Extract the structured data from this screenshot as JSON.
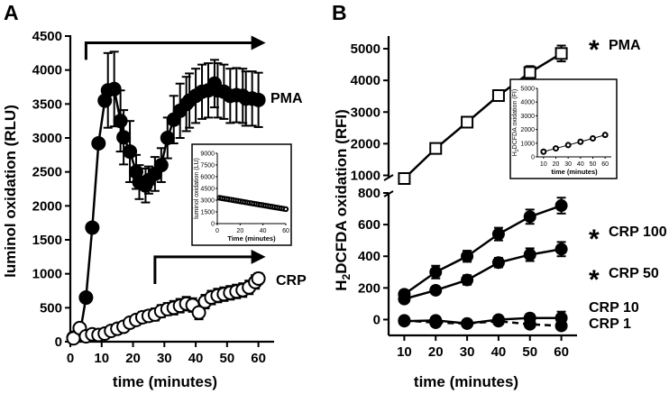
{
  "chart_data": [
    {
      "panel": "A",
      "type": "line",
      "xlabel": "time (minutes)",
      "ylabel": "luminol oxidation (RLU)",
      "xlim": [
        0,
        65
      ],
      "ylim": [
        0,
        4500
      ],
      "xticks": [
        0,
        10,
        20,
        30,
        40,
        50,
        60
      ],
      "yticks": [
        0,
        500,
        1000,
        1500,
        2000,
        2500,
        3000,
        3500,
        4000,
        4500
      ],
      "series": [
        {
          "name": "PMA",
          "marker": "filled-circle",
          "x": [
            1,
            3,
            5,
            7,
            9,
            11,
            12,
            14,
            16,
            17,
            19,
            21,
            22,
            24,
            25,
            27,
            29,
            31,
            33,
            35,
            37,
            38,
            40,
            42,
            44,
            46,
            47,
            49,
            51,
            53,
            55,
            56,
            58,
            60
          ],
          "values": [
            60,
            100,
            650,
            1680,
            2920,
            3550,
            3700,
            3720,
            3250,
            3010,
            2800,
            2500,
            2350,
            2300,
            2380,
            2470,
            2600,
            3000,
            3270,
            3400,
            3500,
            3550,
            3620,
            3680,
            3700,
            3800,
            3700,
            3680,
            3620,
            3630,
            3620,
            3580,
            3580,
            3560
          ],
          "errors": [
            0,
            0,
            0,
            0,
            0,
            0,
            550,
            550,
            450,
            400,
            450,
            250,
            250,
            250,
            200,
            250,
            250,
            300,
            350,
            400,
            400,
            400,
            400,
            400,
            400,
            350,
            400,
            400,
            400,
            400,
            400,
            400,
            400,
            400
          ]
        },
        {
          "name": "CRP",
          "marker": "open-circle",
          "x": [
            1,
            3,
            5,
            7,
            9,
            11,
            13,
            15,
            17,
            19,
            21,
            23,
            25,
            27,
            29,
            31,
            33,
            35,
            37,
            39,
            41,
            43,
            45,
            47,
            49,
            51,
            53,
            55,
            57,
            59,
            60
          ],
          "values": [
            50,
            200,
            80,
            110,
            100,
            120,
            160,
            190,
            220,
            280,
            320,
            360,
            380,
            400,
            450,
            480,
            500,
            530,
            560,
            540,
            430,
            590,
            650,
            680,
            700,
            720,
            740,
            760,
            800,
            880,
            930
          ],
          "errors": [
            0,
            0,
            0,
            0,
            0,
            0,
            0,
            50,
            50,
            60,
            70,
            80,
            80,
            90,
            90,
            90,
            100,
            100,
            100,
            100,
            100,
            100,
            100,
            100,
            100,
            100,
            100,
            100,
            100,
            100,
            80
          ]
        }
      ],
      "series_labels": [
        "PMA",
        "CRP"
      ],
      "annotations": [
        "arrow over PMA from 5 to 60 min",
        "arrow over CRP from 27 to 60 min"
      ],
      "inset": {
        "xlabel": "Time (minutes)",
        "ylabel": "luminol oxidation (LU)",
        "xlim": [
          0,
          60
        ],
        "ylim": [
          0,
          9000
        ],
        "xticks": [
          0,
          20,
          40,
          60
        ],
        "yticks": [
          0,
          1500,
          3000,
          4500,
          6000,
          7500,
          9000
        ],
        "x": [
          2,
          4,
          6,
          8,
          10,
          12,
          14,
          16,
          18,
          20,
          22,
          24,
          26,
          28,
          30,
          32,
          34,
          36,
          38,
          40,
          42,
          44,
          46,
          48,
          50,
          52,
          54,
          56,
          58,
          60
        ],
        "values": [
          3300,
          3250,
          3200,
          3150,
          3100,
          3050,
          3000,
          2950,
          2900,
          2850,
          2800,
          2750,
          2700,
          2650,
          2600,
          2550,
          2500,
          2450,
          2400,
          2350,
          2300,
          2250,
          2200,
          2150,
          2100,
          2050,
          2000,
          1950,
          1900,
          1850
        ]
      }
    },
    {
      "panel": "B",
      "type": "line",
      "xlabel": "time (minutes)",
      "ylabel_parts": [
        "H",
        "2",
        "DCFDA oxidation (RFI)"
      ],
      "xlim": [
        5,
        65
      ],
      "xticks": [
        10,
        20,
        30,
        40,
        50,
        60
      ],
      "ylim_upper": [
        900,
        5400
      ],
      "yticks_upper": [
        1000,
        2000,
        3000,
        4000,
        5000
      ],
      "ylim_lower": [
        -100,
        800
      ],
      "yticks_lower": [
        0,
        200,
        400,
        600,
        800
      ],
      "axis_break": true,
      "series": [
        {
          "name": "PMA",
          "marker": "open-square",
          "x": [
            10,
            20,
            30,
            40,
            50,
            60
          ],
          "values": [
            900,
            1850,
            2680,
            3520,
            4250,
            4850
          ],
          "errors": [
            0,
            50,
            60,
            130,
            200,
            250
          ],
          "significant": "*"
        },
        {
          "name": "CRP 100",
          "marker": "filled-circle",
          "x": [
            10,
            20,
            30,
            40,
            50,
            60
          ],
          "values": [
            160,
            300,
            400,
            540,
            650,
            720
          ],
          "errors": [
            25,
            40,
            35,
            40,
            45,
            50
          ],
          "significant": "*"
        },
        {
          "name": "CRP 50",
          "marker": "filled-circle",
          "x": [
            10,
            20,
            30,
            40,
            50,
            60
          ],
          "values": [
            130,
            185,
            250,
            360,
            410,
            445
          ],
          "errors": [
            20,
            20,
            30,
            30,
            40,
            45
          ],
          "significant": "*"
        },
        {
          "name": "CRP 10",
          "marker": "filled-circle",
          "x": [
            10,
            20,
            30,
            40,
            50,
            60
          ],
          "values": [
            -10,
            -5,
            -25,
            0,
            10,
            10
          ],
          "errors": [
            20,
            20,
            20,
            20,
            25,
            40
          ]
        },
        {
          "name": "CRP 1",
          "marker": "filled-circle",
          "dashed": true,
          "x": [
            10,
            20,
            30,
            40,
            50,
            60
          ],
          "values": [
            -5,
            -20,
            -25,
            -10,
            -30,
            -40
          ],
          "errors": [
            10,
            10,
            10,
            10,
            10,
            10
          ]
        }
      ],
      "inset": {
        "xlabel": "time (minutes)",
        "ylabel_parts": [
          "H",
          "2",
          "DCFDA oxidation (FI)"
        ],
        "xlim": [
          5,
          65
        ],
        "ylim": [
          0,
          5000
        ],
        "xticks": [
          10,
          20,
          30,
          40,
          50,
          60
        ],
        "yticks": [
          0,
          1000,
          2000,
          3000,
          4000,
          5000
        ],
        "x": [
          10,
          20,
          30,
          40,
          50,
          60
        ],
        "values": [
          380,
          620,
          860,
          1100,
          1350,
          1600
        ]
      }
    }
  ],
  "panel_labels": [
    "A",
    "B"
  ],
  "asterisk": "*"
}
